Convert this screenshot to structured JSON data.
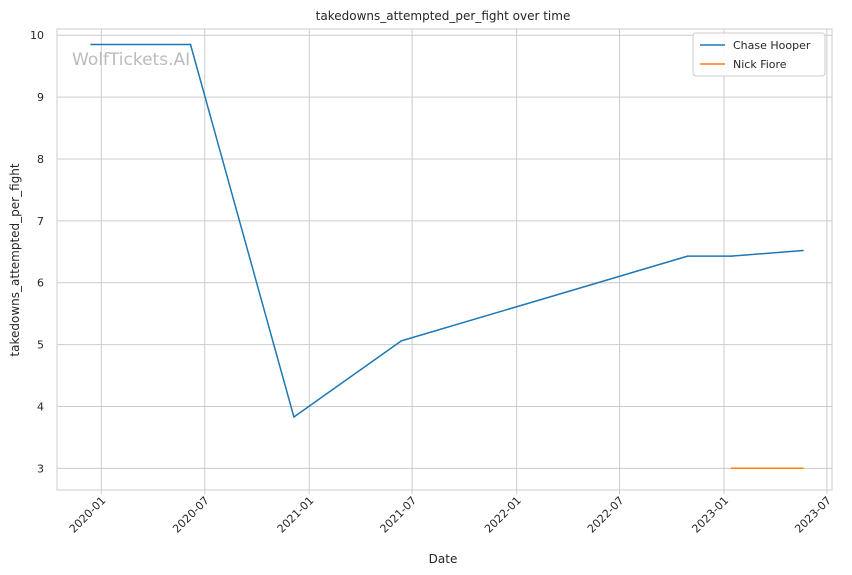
{
  "chart_data": {
    "type": "line",
    "title": "takedowns_attempted_per_fight over time",
    "xlabel": "Date",
    "ylabel": "takedowns_attempted_per_fight",
    "watermark": "WolfTickets.AI",
    "x_range": [
      "2019-10-15",
      "2023-07-10"
    ],
    "ylim": [
      2.65,
      10.1
    ],
    "x_ticks": [
      {
        "date": "2020-01-01",
        "label": "2020-01"
      },
      {
        "date": "2020-07-01",
        "label": "2020-07"
      },
      {
        "date": "2021-01-01",
        "label": "2021-01"
      },
      {
        "date": "2021-07-01",
        "label": "2021-07"
      },
      {
        "date": "2022-01-01",
        "label": "2022-01"
      },
      {
        "date": "2022-07-01",
        "label": "2022-07"
      },
      {
        "date": "2023-01-01",
        "label": "2023-01"
      },
      {
        "date": "2023-07-01",
        "label": "2023-07"
      }
    ],
    "y_ticks": [
      3,
      4,
      5,
      6,
      7,
      8,
      9,
      10
    ],
    "grid": true,
    "legend_position": "top-right",
    "series": [
      {
        "name": "Chase Hooper",
        "color": "#1f77b4",
        "points": [
          {
            "x": "2019-12-14",
            "y": 9.85
          },
          {
            "x": "2020-06-06",
            "y": 9.85
          },
          {
            "x": "2020-12-05",
            "y": 3.83
          },
          {
            "x": "2021-06-12",
            "y": 5.06
          },
          {
            "x": "2022-10-29",
            "y": 6.43
          },
          {
            "x": "2023-01-14",
            "y": 6.43
          },
          {
            "x": "2023-05-20",
            "y": 6.52
          }
        ]
      },
      {
        "name": "Nick Fiore",
        "color": "#ff7f0e",
        "points": [
          {
            "x": "2023-01-14",
            "y": 3.0
          },
          {
            "x": "2023-05-20",
            "y": 3.0
          }
        ]
      }
    ]
  }
}
